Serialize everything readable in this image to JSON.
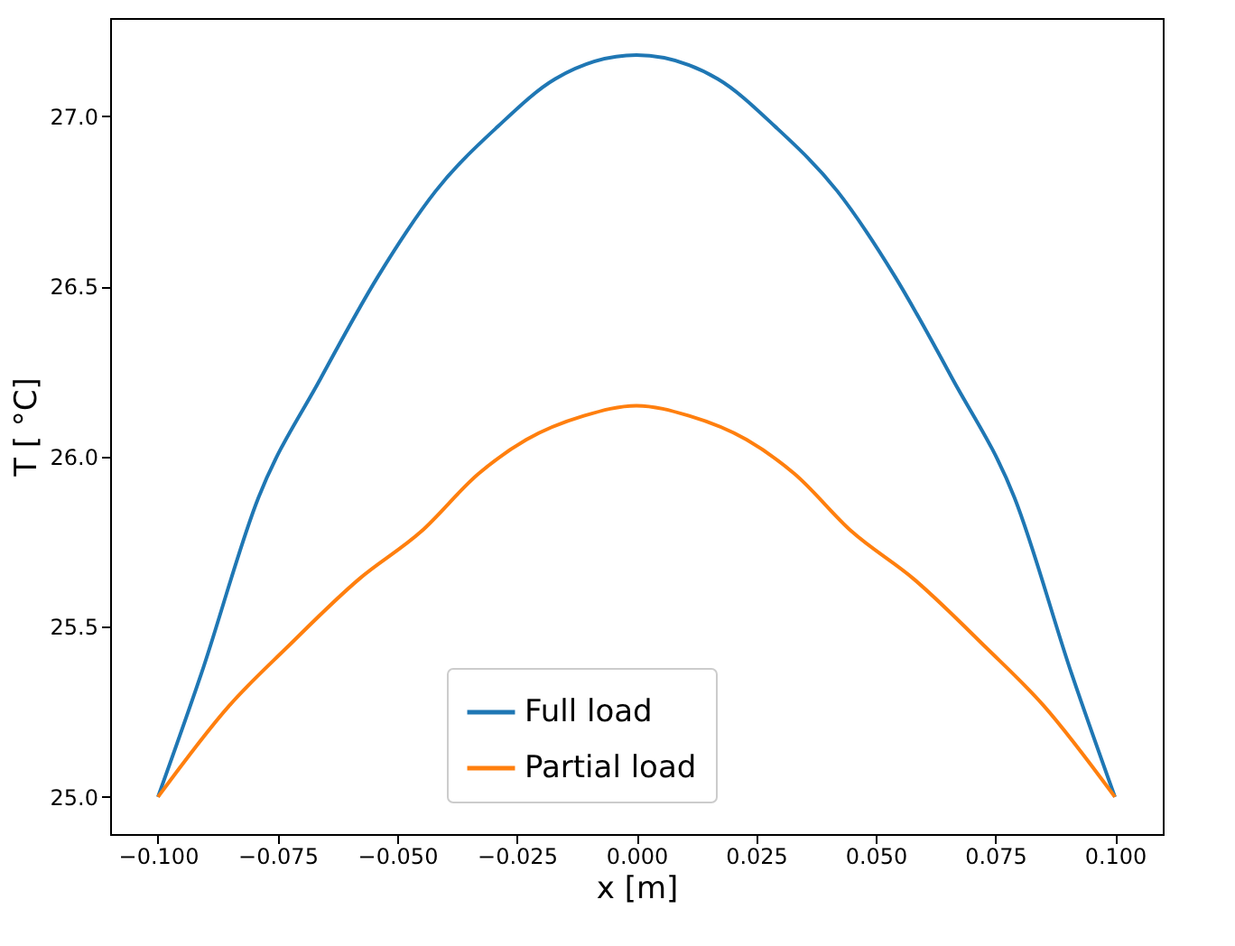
{
  "chart_data": {
    "type": "line",
    "xlabel": "x [m]",
    "ylabel": "T [ °C]",
    "xlim": [
      -0.11,
      0.11
    ],
    "ylim": [
      24.891,
      27.289
    ],
    "xticks": [
      {
        "value": -0.1,
        "label": "−0.100"
      },
      {
        "value": -0.075,
        "label": "−0.075"
      },
      {
        "value": -0.05,
        "label": "−0.050"
      },
      {
        "value": -0.025,
        "label": "−0.025"
      },
      {
        "value": 0,
        "label": "0.000"
      },
      {
        "value": 0.025,
        "label": "0.025"
      },
      {
        "value": 0.05,
        "label": "0.050"
      },
      {
        "value": 0.075,
        "label": "0.075"
      },
      {
        "value": 0.1,
        "label": "0.100"
      }
    ],
    "yticks": [
      {
        "value": 25,
        "label": "25.0"
      },
      {
        "value": 25.5,
        "label": "25.5"
      },
      {
        "value": 26,
        "label": "26.0"
      },
      {
        "value": 26.5,
        "label": "26.5"
      },
      {
        "value": 27,
        "label": "27.0"
      }
    ],
    "grid": false,
    "legend": "bottom",
    "line_style": "solid",
    "marker": "none",
    "series": [
      {
        "name": "Full load",
        "color": "#1f77b4",
        "x": [
          -0.1,
          -0.091,
          -0.079,
          -0.066,
          -0.054,
          -0.042,
          -0.029,
          -0.017,
          0,
          0.017,
          0.029,
          0.042,
          0.054,
          0.066,
          0.079,
          0.091,
          0.1
        ],
        "values": [
          25.0,
          25.36,
          25.88,
          26.23,
          26.53,
          26.78,
          26.97,
          27.11,
          27.18,
          27.11,
          26.97,
          26.78,
          26.53,
          26.23,
          25.88,
          25.36,
          25.0
        ]
      },
      {
        "name": "Partial load",
        "color": "#ff7f0e",
        "x": [
          -0.1,
          -0.085,
          -0.073,
          -0.058,
          -0.045,
          -0.033,
          -0.023,
          -0.011,
          0,
          0.011,
          0.023,
          0.033,
          0.045,
          0.058,
          0.073,
          0.085,
          0.1
        ],
        "values": [
          25.0,
          25.27,
          25.44,
          25.64,
          25.78,
          25.95,
          26.05,
          26.12,
          26.15,
          26.12,
          26.05,
          25.95,
          25.78,
          25.64,
          25.44,
          25.27,
          25.0
        ]
      }
    ]
  }
}
